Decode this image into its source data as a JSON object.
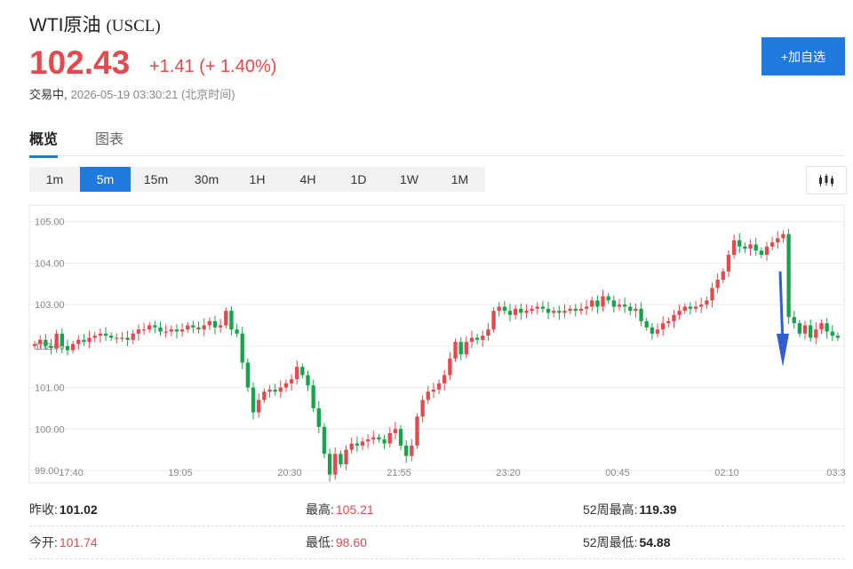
{
  "header": {
    "name": "WTI原油",
    "symbol": "(USCL)",
    "price": "102.43",
    "change": "+1.41 (+ 1.40%)",
    "status": "交易中,",
    "timestamp": "2026-05-19 03:30:21 (北京时间)",
    "add_label": "+加自选"
  },
  "tabs": [
    "概览",
    "图表"
  ],
  "intervals": [
    "1m",
    "5m",
    "15m",
    "30m",
    "1H",
    "4H",
    "1D",
    "1W",
    "1M"
  ],
  "active_interval": "5m",
  "colors": {
    "up": "#e5484d",
    "down": "#17a34a",
    "accent": "#1f7ae0",
    "arrow": "#2f5fd0"
  },
  "stats": {
    "prev_close_label": "昨收:",
    "prev_close": "101.02",
    "open_label": "今开:",
    "open": "101.74",
    "high_label": "最高:",
    "high": "105.21",
    "low_label": "最低:",
    "low": "98.60",
    "wk52_high_label": "52周最高:",
    "wk52_high": "119.39",
    "wk52_low_label": "52周最低:",
    "wk52_low": "54.88"
  },
  "chart_data": {
    "type": "candlestick",
    "x_ticks": [
      "17:40",
      "19:05",
      "20:30",
      "21:55",
      "23:20",
      "00:45",
      "02:10",
      "03:3"
    ],
    "y_ticks": [
      "105.00",
      "104.00",
      "103.00",
      "102.00",
      "101.00",
      "100.00",
      "99.00"
    ],
    "ylim": [
      98.7,
      105.4
    ],
    "grid": "horizontal",
    "annotation": "down-arrow",
    "closes": [
      102.05,
      102.15,
      102.0,
      101.95,
      102.3,
      102.0,
      101.9,
      102.05,
      102.15,
      102.1,
      102.2,
      102.25,
      102.3,
      102.25,
      102.2,
      102.2,
      102.2,
      102.15,
      102.3,
      102.4,
      102.4,
      102.5,
      102.45,
      102.35,
      102.35,
      102.4,
      102.35,
      102.4,
      102.5,
      102.45,
      102.4,
      102.5,
      102.6,
      102.45,
      102.5,
      102.85,
      102.4,
      102.3,
      101.6,
      101.0,
      100.4,
      100.7,
      100.9,
      100.95,
      100.9,
      101.0,
      101.1,
      101.2,
      101.5,
      101.3,
      101.05,
      100.5,
      100.05,
      99.4,
      98.9,
      99.4,
      99.15,
      99.5,
      99.65,
      99.6,
      99.7,
      99.75,
      99.8,
      99.75,
      99.65,
      99.9,
      100.0,
      99.6,
      99.35,
      99.6,
      100.3,
      100.7,
      100.9,
      100.95,
      101.1,
      101.3,
      101.7,
      102.1,
      101.8,
      102.1,
      102.2,
      102.15,
      102.25,
      102.4,
      102.85,
      102.95,
      102.85,
      102.75,
      102.9,
      102.8,
      102.85,
      102.9,
      102.95,
      102.9,
      102.8,
      102.85,
      102.8,
      102.85,
      102.9,
      102.85,
      102.9,
      102.95,
      103.1,
      102.95,
      103.2,
      103.1,
      102.95,
      103.0,
      102.95,
      102.85,
      102.9,
      102.6,
      102.45,
      102.3,
      102.4,
      102.55,
      102.6,
      102.75,
      102.85,
      102.95,
      102.9,
      102.95,
      103.0,
      103.1,
      103.4,
      103.6,
      103.8,
      104.2,
      104.55,
      104.4,
      104.35,
      104.45,
      104.3,
      104.2,
      104.4,
      104.5,
      104.6,
      104.7,
      102.7,
      102.55,
      102.3,
      102.5,
      102.2,
      102.4,
      102.55,
      102.35,
      102.25,
      102.2
    ]
  }
}
